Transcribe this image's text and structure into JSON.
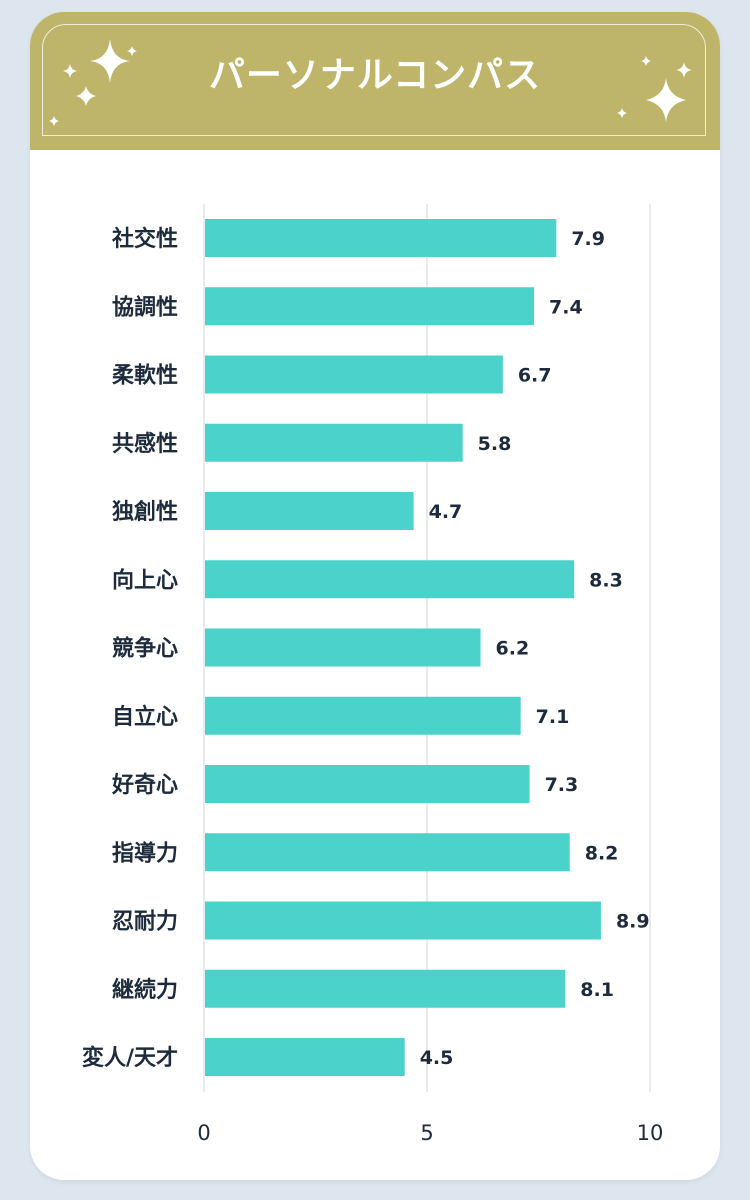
{
  "header": {
    "title": "パーソナルコンパス",
    "background_color": "#beb56a",
    "decoration_icon": "sparkle-icon"
  },
  "chart_data": {
    "type": "bar",
    "orientation": "horizontal",
    "categories": [
      "社交性",
      "協調性",
      "柔軟性",
      "共感性",
      "独創性",
      "向上心",
      "競争心",
      "自立心",
      "好奇心",
      "指導力",
      "忍耐力",
      "継続力",
      "変人/天才"
    ],
    "values": [
      7.9,
      7.4,
      6.7,
      5.8,
      4.7,
      8.3,
      6.2,
      7.1,
      7.3,
      8.2,
      8.9,
      8.1,
      4.5
    ],
    "xlim": [
      0,
      10
    ],
    "xticks": [
      "0",
      "5",
      "10"
    ],
    "grid": true,
    "legend": "none",
    "bar_color": "#4bd3cb",
    "text_color": "#1e2b3c",
    "grid_color": "#dfe3e8"
  }
}
